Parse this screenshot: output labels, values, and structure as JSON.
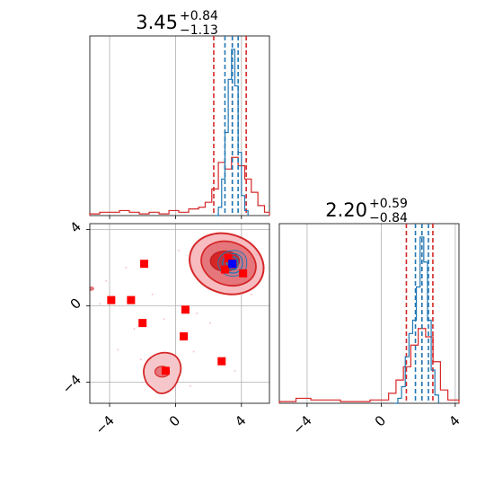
{
  "chart_data": [
    {
      "panel": "top-left",
      "type": "histogram",
      "title": {
        "value": "3.45",
        "plus": "+0.84",
        "minus": "−1.13"
      },
      "xlim": [
        -5.2,
        5.7
      ],
      "grid": true,
      "xticks": [
        -4,
        0,
        4
      ],
      "series": [
        {
          "color": "#1f77b4",
          "bins": [
            2.4,
            2.6,
            2.8,
            3.0,
            3.2,
            3.4,
            3.6,
            3.8,
            4.0,
            4.2,
            4.4
          ],
          "counts": [
            0,
            0.05,
            0.22,
            0.5,
            0.82,
            1.0,
            0.78,
            0.38,
            0.12,
            0.03
          ],
          "quantiles": [
            3.0,
            3.45,
            3.8
          ]
        },
        {
          "color": "#d62728",
          "bins": [
            -5.2,
            -4.6,
            -4.0,
            -3.4,
            -2.8,
            -2.2,
            -1.6,
            -1.0,
            -0.4,
            0.2,
            0.8,
            1.4,
            1.8,
            2.2,
            2.6,
            3.0,
            3.4,
            3.8,
            4.2,
            4.6,
            5.0,
            5.4,
            5.7
          ],
          "counts": [
            0.01,
            0.02,
            0.02,
            0.03,
            0.02,
            0.01,
            0.02,
            0.01,
            0.03,
            0.02,
            0.04,
            0.05,
            0.08,
            0.16,
            0.32,
            0.28,
            0.35,
            0.3,
            0.22,
            0.14,
            0.06,
            0.02
          ],
          "quantiles": [
            2.32,
            3.45,
            4.29
          ]
        }
      ]
    },
    {
      "panel": "bottom-left",
      "type": "scatter",
      "xlim": [
        -5.2,
        5.7
      ],
      "ylim": [
        -5.1,
        4.3
      ],
      "grid": true,
      "xticks": [
        -4,
        0,
        4
      ],
      "yticks": [
        -4,
        0,
        4
      ],
      "series": [
        {
          "color": "#ff0000",
          "marker": "square",
          "points": [
            [
              -3.9,
              0.3
            ],
            [
              -2.7,
              0.3
            ],
            [
              -1.9,
              2.2
            ],
            [
              -2.0,
              -0.9
            ],
            [
              0.6,
              -0.2
            ],
            [
              0.5,
              -1.6
            ],
            [
              -0.6,
              -3.4
            ],
            [
              2.8,
              -2.9
            ],
            [
              3.2,
              2.5
            ],
            [
              4.1,
              1.7
            ],
            [
              3.0,
              1.9
            ]
          ]
        },
        {
          "color": "#0000ff",
          "marker": "square",
          "points": [
            [
              3.45,
              2.2
            ]
          ]
        }
      ]
    },
    {
      "panel": "bottom-right",
      "type": "histogram",
      "title": {
        "value": "2.20",
        "plus": "+0.59",
        "minus": "−0.84"
      },
      "xlim": [
        -5.5,
        4.2
      ],
      "grid": true,
      "xticks": [
        -4,
        0,
        4
      ],
      "series": [
        {
          "color": "#1f77b4",
          "bins": [
            0.7,
            0.9,
            1.1,
            1.3,
            1.5,
            1.7,
            1.9,
            2.1,
            2.3,
            2.5,
            2.7,
            2.9,
            3.1
          ],
          "counts": [
            0,
            0.03,
            0.1,
            0.28,
            0.42,
            0.5,
            0.7,
            1.0,
            0.85,
            0.5,
            0.2,
            0.05
          ],
          "quantiles": [
            1.85,
            2.2,
            2.55
          ]
        },
        {
          "color": "#d62728",
          "bins": [
            -5.5,
            -4.6,
            -3.8,
            -3.0,
            -2.2,
            -1.4,
            -0.6,
            0.0,
            0.4,
            0.8,
            1.2,
            1.6,
            2.0,
            2.4,
            2.8,
            3.2,
            3.6,
            4.2
          ],
          "counts": [
            0.01,
            0.03,
            0.02,
            0.02,
            0.01,
            0.01,
            0.02,
            0.02,
            0.06,
            0.14,
            0.22,
            0.35,
            0.45,
            0.4,
            0.25,
            0.08,
            0.02
          ],
          "quantiles": [
            1.36,
            2.2,
            2.79
          ]
        }
      ]
    }
  ]
}
